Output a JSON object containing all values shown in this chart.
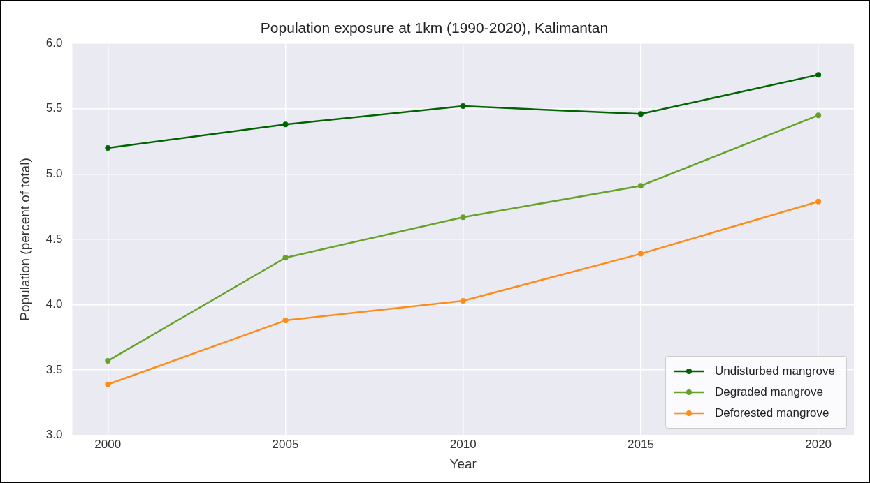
{
  "chart_data": {
    "type": "line",
    "title": "Population exposure at 1km (1990-2020), Kalimantan",
    "xlabel": "Year",
    "ylabel": "Population (percent of total)",
    "x": [
      2000,
      2005,
      2010,
      2015,
      2020
    ],
    "series": [
      {
        "name": "Undisturbed mangrove",
        "color": "#006400",
        "values": [
          5.2,
          5.38,
          5.52,
          5.46,
          5.76
        ]
      },
      {
        "name": "Degraded mangrove",
        "color": "#66a22a",
        "values": [
          3.57,
          4.36,
          4.67,
          4.91,
          5.45
        ]
      },
      {
        "name": "Deforested mangrove",
        "color": "#ff8c1a",
        "values": [
          3.39,
          3.88,
          4.03,
          4.39,
          4.79
        ]
      }
    ],
    "xlim": [
      1999,
      2021
    ],
    "xticks": [
      2000,
      2005,
      2010,
      2015,
      2020
    ],
    "ylim": [
      3.0,
      6.0
    ],
    "yticks": [
      {
        "value": 3.0,
        "label": "3.0"
      },
      {
        "value": 3.5,
        "label": "3.5"
      },
      {
        "value": 4.0,
        "label": "4.0"
      },
      {
        "value": 4.5,
        "label": "4.5"
      },
      {
        "value": 5.0,
        "label": "5.0"
      },
      {
        "value": 5.5,
        "label": "5.5"
      },
      {
        "value": 6.0,
        "label": "6.0"
      }
    ],
    "grid": true,
    "legend": "bottom right",
    "marker": "circle",
    "line_style": "solid"
  }
}
